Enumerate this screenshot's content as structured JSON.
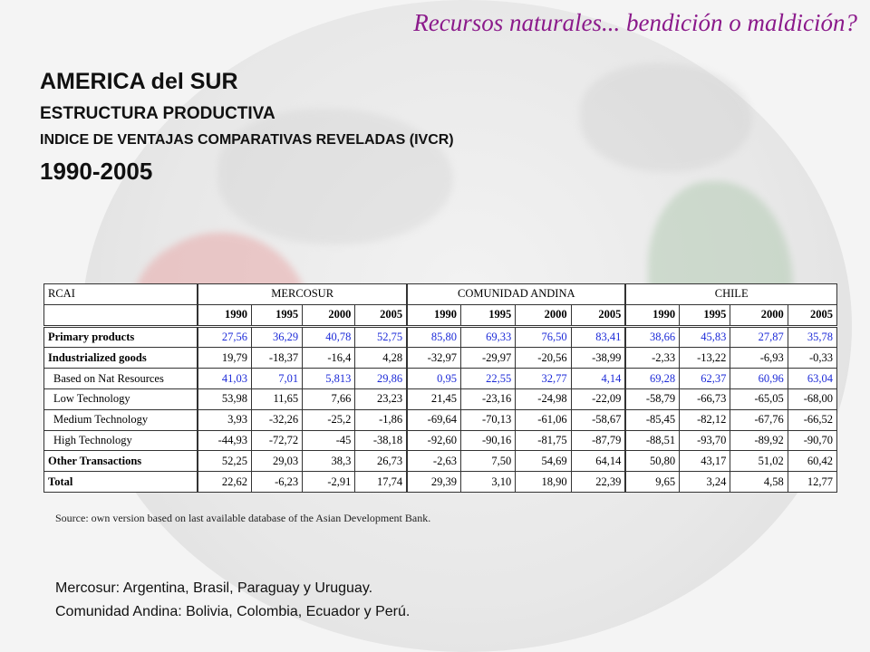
{
  "slide_title": "Recursos naturales... bendición o maldición?",
  "heading": {
    "region": "AMERICA del SUR",
    "subtitle": "ESTRUCTURA PRODUCTIVA",
    "index_title": "INDICE DE VENTAJAS COMPARATIVAS REVELADAS (IVCR)",
    "period": "1990-2005"
  },
  "table": {
    "corner_label": "RCAI",
    "groups": [
      "MERCOSUR",
      "COMUNIDAD ANDINA",
      "CHILE"
    ],
    "years": [
      "1990",
      "1995",
      "2000",
      "2005"
    ],
    "rows": [
      {
        "label": "Primary products",
        "values": [
          "27,56",
          "36,29",
          "40,78",
          "52,75",
          "85,80",
          "69,33",
          "76,50",
          "83,41",
          "38,66",
          "45,83",
          "27,87",
          "35,78"
        ]
      },
      {
        "label": "Industrialized goods",
        "values": [
          "19,79",
          "-18,37",
          "-16,4",
          "4,28",
          "-32,97",
          "-29,97",
          "-20,56",
          "-38,99",
          "-2,33",
          "-13,22",
          "-6,93",
          "-0,33"
        ]
      },
      {
        "label": "Based on Nat Resources",
        "values": [
          "41,03",
          "7,01",
          "5,813",
          "29,86",
          "0,95",
          "22,55",
          "32,77",
          "4,14",
          "69,28",
          "62,37",
          "60,96",
          "63,04"
        ]
      },
      {
        "label": "Low Technology",
        "values": [
          "53,98",
          "11,65",
          "7,66",
          "23,23",
          "21,45",
          "-23,16",
          "-24,98",
          "-22,09",
          "-58,79",
          "-66,73",
          "-65,05",
          "-68,00"
        ]
      },
      {
        "label": "Medium Technology",
        "values": [
          "3,93",
          "-32,26",
          "-25,2",
          "-1,86",
          "-69,64",
          "-70,13",
          "-61,06",
          "-58,67",
          "-85,45",
          "-82,12",
          "-67,76",
          "-66,52"
        ]
      },
      {
        "label": "High Technology",
        "values": [
          "-44,93",
          "-72,72",
          "-45",
          "-38,18",
          "-92,60",
          "-90,16",
          "-81,75",
          "-87,79",
          "-88,51",
          "-93,70",
          "-89,92",
          "-90,70"
        ]
      },
      {
        "label": "Other Transactions",
        "values": [
          "52,25",
          "29,03",
          "38,3",
          "26,73",
          "-2,63",
          "7,50",
          "54,69",
          "64,14",
          "50,80",
          "43,17",
          "51,02",
          "60,42"
        ]
      },
      {
        "label": "Total",
        "values": [
          "22,62",
          "-6,23",
          "-2,91",
          "17,74",
          "29,39",
          "3,10",
          "18,90",
          "22,39",
          "9,65",
          "3,24",
          "4,58",
          "12,77"
        ]
      }
    ]
  },
  "source_note": "Source: own version based on last available  database of the Asian Development Bank.",
  "footnotes": {
    "mercosur": "Mercosur: Argentina, Brasil, Paraguay y Uruguay.",
    "andina": "Comunidad Andina: Bolivia, Colombia, Ecuador y Perú."
  },
  "colors": {
    "title": "#8b1a8b",
    "highlight_values": "#1d2bd8"
  }
}
